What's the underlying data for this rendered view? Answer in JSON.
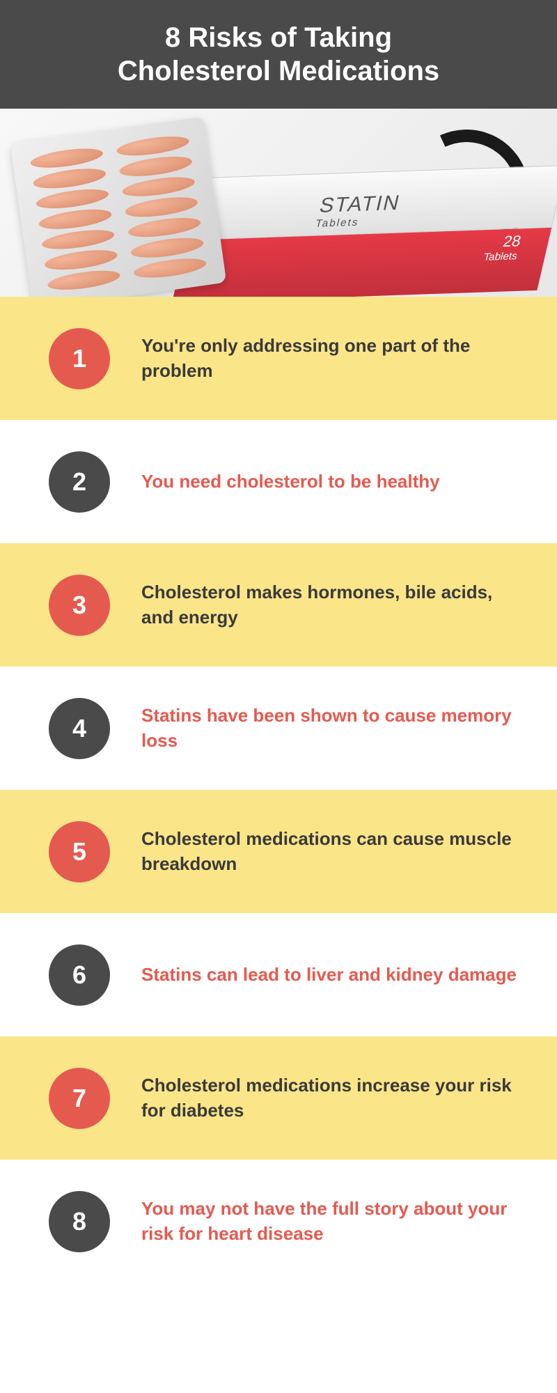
{
  "header": {
    "title_line1": "8 Risks of Taking",
    "title_line2": "Cholesterol Medications",
    "title_fontsize": 40
  },
  "hero": {
    "box_label_big": "STATIN",
    "box_label_small": "Tablets",
    "box_count": "28",
    "box_count_label": "Tablets",
    "box_front_text": "STATIN"
  },
  "colors": {
    "header_bg": "#4a4a4a",
    "yellow_bg": "#fae588",
    "white_bg": "#ffffff",
    "badge_red": "#e55a4f",
    "badge_dark": "#4a4a4a",
    "text_dark": "#3a3a3a",
    "text_red": "#e55a4f"
  },
  "risks": [
    {
      "num": "1",
      "text": "You're only addressing one part of the problem",
      "row_bg": "yellow",
      "badge": "red",
      "text_color": "dark"
    },
    {
      "num": "2",
      "text": "You need cholesterol to be healthy",
      "row_bg": "white",
      "badge": "dark",
      "text_color": "red"
    },
    {
      "num": "3",
      "text": "Cholesterol makes hormones, bile acids, and energy",
      "row_bg": "yellow",
      "badge": "red",
      "text_color": "dark"
    },
    {
      "num": "4",
      "text": "Statins have been shown to cause memory loss",
      "row_bg": "white",
      "badge": "dark",
      "text_color": "red"
    },
    {
      "num": "5",
      "text": "Cholesterol medications can cause muscle breakdown",
      "row_bg": "yellow",
      "badge": "red",
      "text_color": "dark"
    },
    {
      "num": "6",
      "text": "Statins can lead to liver and kidney damage",
      "row_bg": "white",
      "badge": "dark",
      "text_color": "red"
    },
    {
      "num": "7",
      "text": "Cholesterol medications increase your risk for diabetes",
      "row_bg": "yellow",
      "badge": "red",
      "text_color": "dark"
    },
    {
      "num": "8",
      "text": "You may not have the full story about your risk for heart disease",
      "row_bg": "white",
      "badge": "dark",
      "text_color": "red"
    }
  ]
}
